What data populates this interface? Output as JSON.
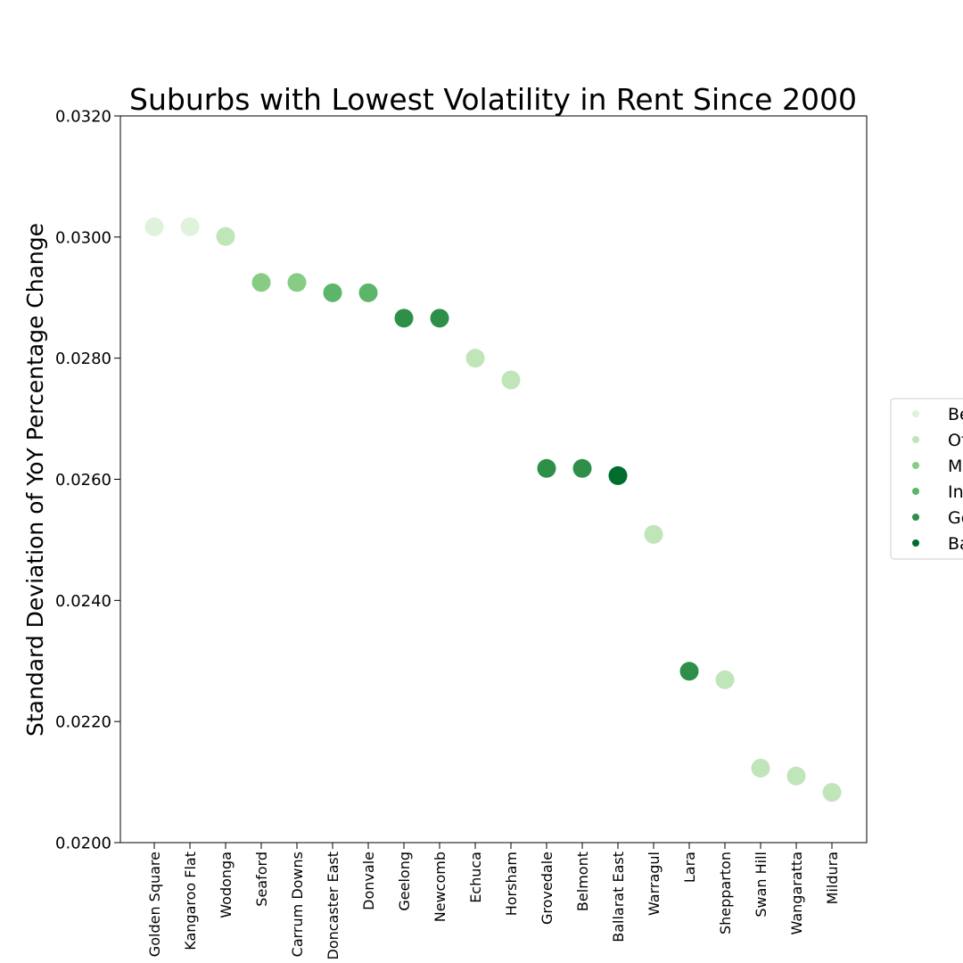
{
  "chart_data": {
    "type": "scatter",
    "title": "Suburbs with Lowest Volatility in Rent Since 2000",
    "xlabel": "",
    "ylabel": "Standard Deviation of YoY Percentage Change",
    "ylim": [
      0.02,
      0.032
    ],
    "yticks": [
      "0.0200",
      "0.0220",
      "0.0240",
      "0.0260",
      "0.0280",
      "0.0300",
      "0.0320"
    ],
    "grid": false,
    "legend_position": "right",
    "categories": [
      "Golden Square",
      "Kangaroo Flat",
      "Wodonga",
      "Seaford",
      "Carrum Downs",
      "Doncaster East",
      "Donvale",
      "Geelong",
      "Newcomb",
      "Echuca",
      "Horsham",
      "Grovedale",
      "Belmont",
      "Ballarat East",
      "Warragul",
      "Lara",
      "Shepparton",
      "Swan Hill",
      "Wangaratta",
      "Mildura"
    ],
    "values": [
      0.03017,
      0.03017,
      0.03001,
      0.02925,
      0.02925,
      0.02908,
      0.02908,
      0.02866,
      0.02866,
      0.028,
      0.02764,
      0.02618,
      0.02618,
      0.02606,
      0.02509,
      0.02283,
      0.02269,
      0.02123,
      0.0211,
      0.02083
    ],
    "groups": [
      0,
      0,
      1,
      2,
      2,
      3,
      3,
      4,
      4,
      1,
      1,
      4,
      4,
      5,
      1,
      4,
      1,
      1,
      1,
      1
    ],
    "legend": [
      "Be",
      "Of",
      "M",
      "In",
      "Ge",
      "Ba"
    ],
    "colors": [
      "#e0f2db",
      "#bfe5b8",
      "#86cc84",
      "#5cb669",
      "#2e9048",
      "#006d2c"
    ]
  }
}
